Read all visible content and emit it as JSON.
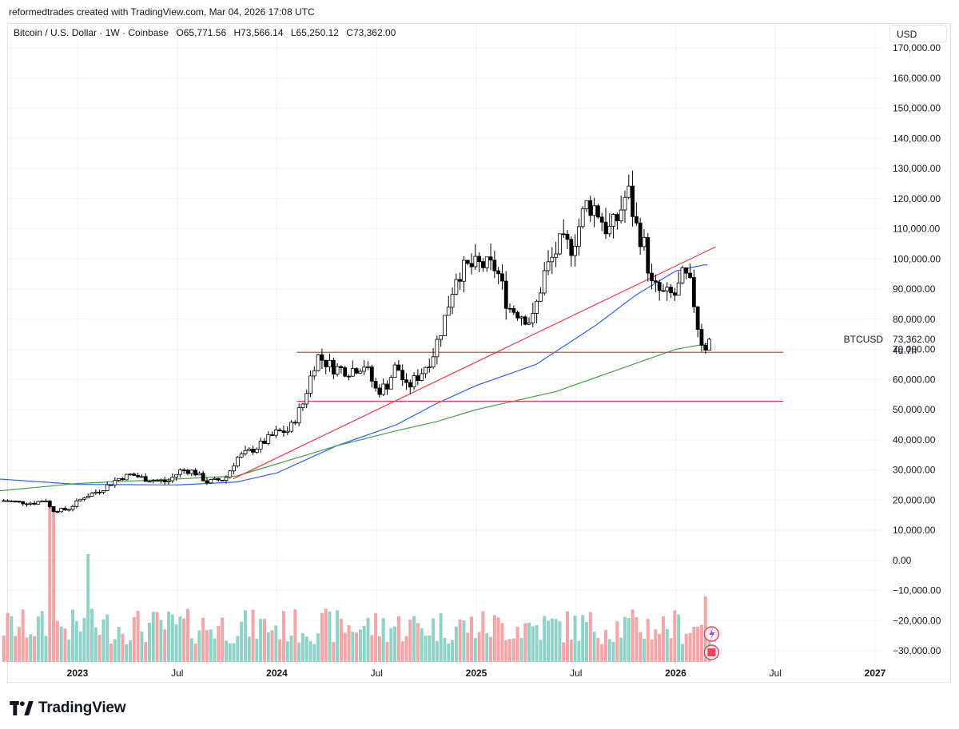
{
  "header": {
    "credit": "reformedtrades created with TradingView.com, Mar 04, 2026 17:08 UTC",
    "symbol": "Bitcoin / U.S. Dollar · 1W · Coinbase",
    "open": "O65,771.56",
    "high": "H73,566.14",
    "low": "L65,250.12",
    "close": "C73,362.00",
    "currency_button": "USD"
  },
  "footer": {
    "brand": "TradingView"
  },
  "colors": {
    "up_candle": "#ffffff",
    "down_candle": "#000000",
    "candle_border": "#000000",
    "vol_up": "#8fd3c8",
    "vol_down": "#f4a5a5",
    "ma_blue": "#2962ff",
    "ma_green": "#43a047",
    "lines_red": "#f23645",
    "grid": "#f2f3f5"
  },
  "chart_data": {
    "type": "candlestick",
    "title": "Bitcoin / U.S. Dollar · 1W · Coinbase",
    "ylim": [
      -33000,
      171000
    ],
    "y_ticks": [
      "170,000.00",
      "160,000.00",
      "150,000.00",
      "140,000.00",
      "130,000.00",
      "120,000.00",
      "110,000.00",
      "100,000.00",
      "90,000.00",
      "80,000.00",
      "70,000.00",
      "60,000.00",
      "50,000.00",
      "40,000.00",
      "30,000.00",
      "20,000.00",
      "10,000.00",
      "0.00",
      "−10,000.00",
      "−20,000.00",
      "−30,000.00"
    ],
    "y_tick_values": [
      170000,
      160000,
      150000,
      140000,
      130000,
      120000,
      110000,
      100000,
      90000,
      80000,
      70000,
      60000,
      50000,
      40000,
      30000,
      20000,
      10000,
      0,
      -10000,
      -20000,
      -30000
    ],
    "x_labels": [
      {
        "label": "2023",
        "t": 2023.0,
        "bold": true
      },
      {
        "label": "Jul",
        "t": 2023.5,
        "bold": false
      },
      {
        "label": "2024",
        "t": 2024.0,
        "bold": true
      },
      {
        "label": "Jul",
        "t": 2024.5,
        "bold": false
      },
      {
        "label": "2025",
        "t": 2025.0,
        "bold": true
      },
      {
        "label": "Jul",
        "t": 2025.5,
        "bold": false
      },
      {
        "label": "2026",
        "t": 2026.0,
        "bold": true
      },
      {
        "label": "Jul",
        "t": 2026.5,
        "bold": false
      },
      {
        "label": "2027",
        "t": 2027.0,
        "bold": true
      }
    ],
    "price_anchors": [
      [
        2022.63,
        19800
      ],
      [
        2022.7,
        19300
      ],
      [
        2022.78,
        19000
      ],
      [
        2022.84,
        20200
      ],
      [
        2022.87,
        16600
      ],
      [
        2022.95,
        16800
      ],
      [
        2023.03,
        21000
      ],
      [
        2023.12,
        23500
      ],
      [
        2023.2,
        27000
      ],
      [
        2023.27,
        28500
      ],
      [
        2023.34,
        27000
      ],
      [
        2023.45,
        26000
      ],
      [
        2023.52,
        30000
      ],
      [
        2023.58,
        29500
      ],
      [
        2023.65,
        26000
      ],
      [
        2023.74,
        27000
      ],
      [
        2023.8,
        34000
      ],
      [
        2023.9,
        37500
      ],
      [
        2024.0,
        42500
      ],
      [
        2024.06,
        43000
      ],
      [
        2024.13,
        52000
      ],
      [
        2024.2,
        68000
      ],
      [
        2024.28,
        64000
      ],
      [
        2024.36,
        63000
      ],
      [
        2024.44,
        65000
      ],
      [
        2024.5,
        56000
      ],
      [
        2024.55,
        58000
      ],
      [
        2024.6,
        65000
      ],
      [
        2024.65,
        57000
      ],
      [
        2024.72,
        62000
      ],
      [
        2024.78,
        68000
      ],
      [
        2024.84,
        80000
      ],
      [
        2024.9,
        95000
      ],
      [
        2024.95,
        97000
      ],
      [
        2025.02,
        98000
      ],
      [
        2025.1,
        97000
      ],
      [
        2025.16,
        84000
      ],
      [
        2025.22,
        82000
      ],
      [
        2025.28,
        79000
      ],
      [
        2025.34,
        95000
      ],
      [
        2025.42,
        105000
      ],
      [
        2025.48,
        104000
      ],
      [
        2025.55,
        118000
      ],
      [
        2025.6,
        117000
      ],
      [
        2025.66,
        109000
      ],
      [
        2025.7,
        112000
      ],
      [
        2025.76,
        123000
      ],
      [
        2025.8,
        111000
      ],
      [
        2025.84,
        105000
      ],
      [
        2025.88,
        91000
      ],
      [
        2025.94,
        88000
      ],
      [
        2026.0,
        88000
      ],
      [
        2026.04,
        95000
      ],
      [
        2026.08,
        90000
      ],
      [
        2026.11,
        78000
      ],
      [
        2026.14,
        70000
      ],
      [
        2026.17,
        73362
      ]
    ],
    "ma_blue": [
      [
        2022.6,
        27000
      ],
      [
        2023.0,
        25200
      ],
      [
        2023.5,
        25000
      ],
      [
        2023.8,
        26000
      ],
      [
        2024.0,
        29000
      ],
      [
        2024.3,
        38000
      ],
      [
        2024.6,
        45000
      ],
      [
        2024.8,
        52000
      ],
      [
        2025.0,
        58000
      ],
      [
        2025.3,
        65000
      ],
      [
        2025.6,
        78000
      ],
      [
        2025.8,
        88000
      ],
      [
        2026.0,
        96000
      ],
      [
        2026.14,
        98000
      ],
      [
        2026.17,
        98000
      ]
    ],
    "ma_green": [
      [
        2022.6,
        23000
      ],
      [
        2023.0,
        25500
      ],
      [
        2023.5,
        27000
      ],
      [
        2023.8,
        28000
      ],
      [
        2024.0,
        32000
      ],
      [
        2024.3,
        38000
      ],
      [
        2024.6,
        43000
      ],
      [
        2024.8,
        46000
      ],
      [
        2025.0,
        50000
      ],
      [
        2025.4,
        56000
      ],
      [
        2025.7,
        63000
      ],
      [
        2026.0,
        70000
      ],
      [
        2026.17,
        72000
      ]
    ],
    "trendline": {
      "from": [
        2023.78,
        27000
      ],
      "to": [
        2026.2,
        104000
      ]
    },
    "horizontal_lines": [
      69000,
      52800
    ],
    "last_price": {
      "symbol": "BTCUSD",
      "value": "73,362.00",
      "countdown": "4d 7h"
    }
  }
}
